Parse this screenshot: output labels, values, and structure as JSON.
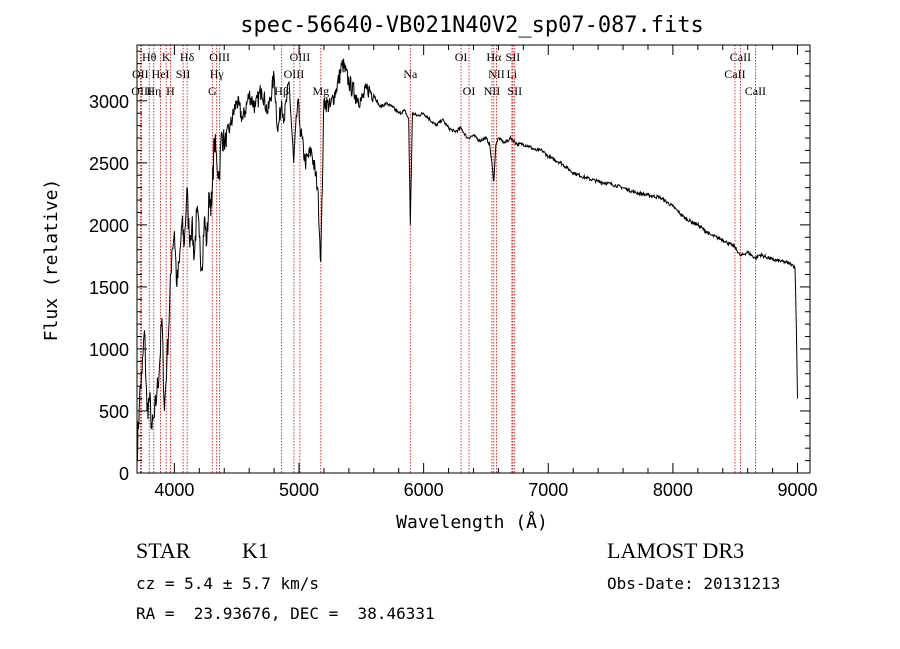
{
  "chart_data": {
    "type": "line",
    "title": "spec-56640-VB021N40V2_sp07-087.fits",
    "xlabel": "Wavelength (Å)",
    "ylabel": "Flux (relative)",
    "xlim": [
      3700,
      9100
    ],
    "ylim": [
      0,
      3450
    ],
    "xticks": [
      4000,
      5000,
      6000,
      7000,
      8000,
      9000
    ],
    "yticks": [
      0,
      500,
      1000,
      1500,
      2000,
      2500,
      3000
    ],
    "grid": false,
    "series": [
      {
        "name": "flux",
        "x": [
          3700,
          3720,
          3740,
          3760,
          3780,
          3800,
          3820,
          3840,
          3860,
          3880,
          3900,
          3920,
          3940,
          3960,
          3980,
          4000,
          4020,
          4040,
          4060,
          4080,
          4100,
          4120,
          4140,
          4160,
          4180,
          4200,
          4220,
          4240,
          4260,
          4280,
          4300,
          4320,
          4340,
          4360,
          4380,
          4400,
          4450,
          4500,
          4550,
          4600,
          4650,
          4700,
          4750,
          4800,
          4830,
          4861,
          4880,
          4920,
          4957,
          4990,
          5007,
          5050,
          5100,
          5150,
          5175,
          5200,
          5250,
          5300,
          5350,
          5400,
          5450,
          5500,
          5550,
          5600,
          5650,
          5700,
          5750,
          5800,
          5850,
          5880,
          5893,
          5910,
          5950,
          6000,
          6050,
          6100,
          6150,
          6200,
          6250,
          6300,
          6350,
          6400,
          6450,
          6500,
          6530,
          6563,
          6580,
          6600,
          6650,
          6700,
          6750,
          6800,
          6850,
          6900,
          6950,
          7000,
          7100,
          7200,
          7300,
          7400,
          7500,
          7600,
          7700,
          7800,
          7900,
          8000,
          8100,
          8200,
          8300,
          8400,
          8498,
          8542,
          8600,
          8662,
          8700,
          8800,
          8900,
          8960,
          8980,
          8990,
          9000
        ],
        "y": [
          120,
          600,
          800,
          1150,
          500,
          600,
          350,
          450,
          650,
          850,
          1250,
          500,
          900,
          1300,
          1800,
          1950,
          1500,
          1700,
          2000,
          1850,
          2300,
          1900,
          2000,
          1750,
          2100,
          1900,
          1650,
          2050,
          1850,
          2250,
          2150,
          2700,
          2500,
          2400,
          2750,
          2650,
          2800,
          3000,
          2850,
          3050,
          2950,
          3100,
          2900,
          3200,
          2750,
          3000,
          2850,
          3150,
          2500,
          3000,
          2800,
          2500,
          2600,
          2300,
          1700,
          3000,
          2950,
          3100,
          3300,
          3150,
          3050,
          3000,
          3100,
          3050,
          2950,
          2980,
          2950,
          2900,
          2920,
          2850,
          2000,
          2900,
          2880,
          2900,
          2850,
          2800,
          2850,
          2780,
          2750,
          2780,
          2700,
          2720,
          2680,
          2700,
          2650,
          2350,
          2650,
          2700,
          2660,
          2700,
          2650,
          2650,
          2630,
          2600,
          2600,
          2550,
          2500,
          2420,
          2380,
          2350,
          2330,
          2300,
          2260,
          2240,
          2220,
          2150,
          2050,
          2000,
          1920,
          1880,
          1820,
          1750,
          1780,
          1730,
          1760,
          1720,
          1700,
          1680,
          1650,
          1200,
          600
        ]
      }
    ],
    "line_marks": [
      {
        "label": "Hθ",
        "x": 3798,
        "row": 1,
        "color": "#cc0000"
      },
      {
        "label": "OII",
        "x": 3727,
        "row": 2,
        "color": "#cc0000"
      },
      {
        "label": "OIII",
        "x": 3737,
        "row": 3,
        "color": "#cc0000"
      },
      {
        "label": "Hη",
        "x": 3835,
        "row": 3,
        "color": "#cc0000"
      },
      {
        "label": "K",
        "x": 3934,
        "row": 1,
        "color": "#cc0000"
      },
      {
        "label": "HeI",
        "x": 3889,
        "row": 2,
        "color": "#cc0000"
      },
      {
        "label": "SII",
        "x": 4070,
        "row": 2,
        "color": "#cc0000"
      },
      {
        "label": "H",
        "x": 3968,
        "row": 3,
        "color": "#cc0000"
      },
      {
        "label": "Hδ",
        "x": 4102,
        "row": 1,
        "color": "#cc0000"
      },
      {
        "label": "OIII",
        "x": 4363,
        "row": 1,
        "color": "#cc0000"
      },
      {
        "label": "Hγ",
        "x": 4340,
        "row": 2,
        "color": "#cc0000"
      },
      {
        "label": "G",
        "x": 4304,
        "row": 3,
        "color": "#cc0000"
      },
      {
        "label": "OIII",
        "x": 5007,
        "row": 1,
        "color": "#cc0000"
      },
      {
        "label": "OIII",
        "x": 4959,
        "row": 2,
        "color": "#cc0000"
      },
      {
        "label": "Hβ",
        "x": 4861,
        "row": 3,
        "color": "#cc0000"
      },
      {
        "label": "Mg",
        "x": 5175,
        "row": 3,
        "color": "#cc0000"
      },
      {
        "label": "Na",
        "x": 5893,
        "row": 2,
        "color": "#cc0000"
      },
      {
        "label": "OI",
        "x": 6300,
        "row": 1,
        "color": "#cc0000"
      },
      {
        "label": "OI",
        "x": 6364,
        "row": 3,
        "color": "#cc0000"
      },
      {
        "label": "Hα",
        "x": 6563,
        "row": 1,
        "color": "#cc0000"
      },
      {
        "label": "SII",
        "x": 6716,
        "row": 1,
        "color": "#cc0000"
      },
      {
        "label": "NII",
        "x": 6584,
        "row": 2,
        "color": "#cc0000"
      },
      {
        "label": "Li",
        "x": 6708,
        "row": 2,
        "color": "#cc0000"
      },
      {
        "label": "NII",
        "x": 6548,
        "row": 3,
        "color": "#cc0000"
      },
      {
        "label": "SII",
        "x": 6731,
        "row": 3,
        "color": "#cc0000"
      },
      {
        "label": "CaII",
        "x": 8542,
        "row": 1,
        "color": "#cc0000"
      },
      {
        "label": "CaII",
        "x": 8498,
        "row": 2,
        "color": "#cc0000"
      },
      {
        "label": "CaII",
        "x": 8662,
        "row": 3,
        "color": "#cc0000"
      }
    ]
  },
  "footer": {
    "object_class": "STAR",
    "subclass": "K1",
    "survey": "LAMOST DR3",
    "cz": "cz = 5.4 ± 5.7 km/s",
    "obs_date": "Obs-Date: 20131213",
    "coords": "RA =  23.93676, DEC =  38.46331"
  },
  "colors": {
    "line": "#000000",
    "marker": "#cc0000",
    "background": "#ffffff"
  }
}
